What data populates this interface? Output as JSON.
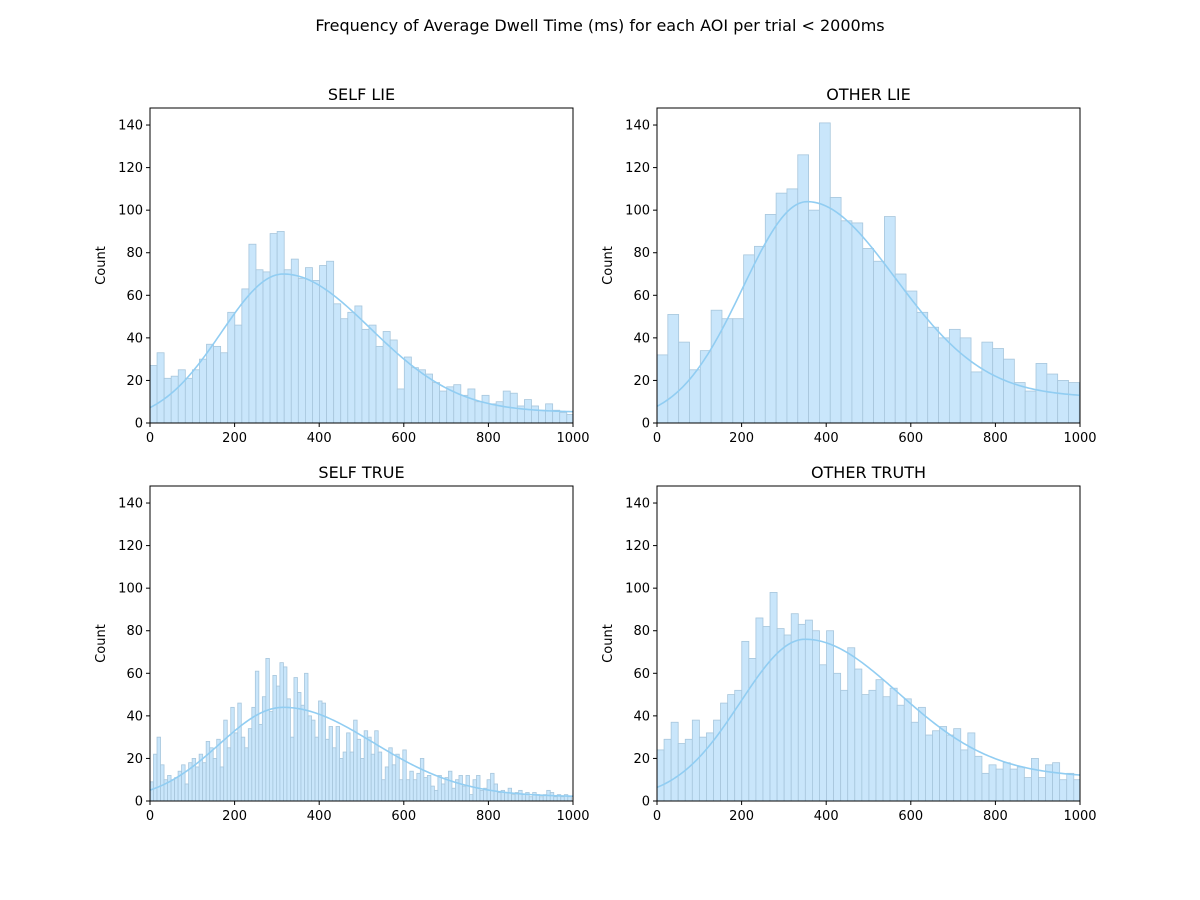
{
  "figure": {
    "title": "Frequency of Average Dwell Time (ms) for each AOI per trial < 2000ms"
  },
  "style": {
    "bar_fill": "#c9e6fb",
    "bar_edge": "#a7c6dc",
    "kde_color": "#91cdf2",
    "axis_color": "#000000"
  },
  "chart_data": [
    {
      "type": "bar",
      "subtype": "histogram-with-kde",
      "title": "SELF LIE",
      "xlabel": "",
      "ylabel": "Count",
      "xlim": [
        0,
        1000
      ],
      "ylim": [
        0,
        148
      ],
      "xticks": [
        0,
        200,
        400,
        600,
        800,
        1000
      ],
      "yticks": [
        0,
        20,
        40,
        60,
        80,
        100,
        120,
        140
      ],
      "bin_width": 16.7,
      "values": [
        27,
        33,
        21,
        22,
        25,
        21,
        25,
        30,
        37,
        36,
        33,
        52,
        46,
        63,
        84,
        72,
        71,
        89,
        90,
        72,
        77,
        68,
        73,
        67,
        74,
        76,
        56,
        49,
        52,
        55,
        44,
        46,
        36,
        43,
        39,
        16,
        31,
        26,
        25,
        23,
        19,
        15,
        17,
        18,
        13,
        16,
        10,
        13,
        9,
        10,
        15,
        14,
        8,
        11,
        8,
        6,
        9,
        6,
        5,
        4,
        6
      ],
      "kde": {
        "peak_x": 315,
        "peak_y": 70,
        "sigma_left": 145,
        "sigma_right": 210,
        "tail_y": 5
      }
    },
    {
      "type": "bar",
      "subtype": "histogram-with-kde",
      "title": "OTHER LIE",
      "xlabel": "",
      "ylabel": "Count",
      "xlim": [
        0,
        1000
      ],
      "ylim": [
        0,
        148
      ],
      "xticks": [
        0,
        200,
        400,
        600,
        800,
        1000
      ],
      "yticks": [
        0,
        20,
        40,
        60,
        80,
        100,
        120,
        140
      ],
      "bin_width": 25.6,
      "values": [
        32,
        51,
        38,
        25,
        34,
        53,
        49,
        49,
        79,
        83,
        98,
        108,
        110,
        126,
        100,
        141,
        106,
        95,
        94,
        82,
        76,
        97,
        70,
        62,
        52,
        45,
        40,
        44,
        40,
        24,
        38,
        35,
        30,
        19,
        15,
        28,
        23,
        20,
        19,
        11,
        13,
        11
      ],
      "kde": {
        "peak_x": 355,
        "peak_y": 104,
        "sigma_left": 150,
        "sigma_right": 215,
        "tail_y": 12
      }
    },
    {
      "type": "bar",
      "subtype": "histogram-with-kde",
      "title": "SELF TRUE",
      "xlabel": "",
      "ylabel": "Count",
      "xlim": [
        0,
        1000
      ],
      "ylim": [
        0,
        148
      ],
      "xticks": [
        0,
        200,
        400,
        600,
        800,
        1000
      ],
      "yticks": [
        0,
        20,
        40,
        60,
        80,
        100,
        120,
        140
      ],
      "bin_width": 8.3,
      "values": [
        9,
        22,
        30,
        17,
        10,
        12,
        10,
        11,
        14,
        17,
        8,
        18,
        20,
        16,
        22,
        18,
        28,
        25,
        20,
        29,
        16,
        38,
        25,
        44,
        32,
        46,
        30,
        25,
        34,
        44,
        61,
        36,
        49,
        67,
        42,
        59,
        54,
        65,
        63,
        48,
        30,
        58,
        51,
        45,
        60,
        40,
        38,
        30,
        47,
        46,
        29,
        35,
        25,
        35,
        20,
        23,
        32,
        23,
        38,
        29,
        20,
        33,
        30,
        22,
        33,
        23,
        10,
        16,
        25,
        17,
        22,
        10,
        24,
        10,
        14,
        10,
        13,
        20,
        11,
        12,
        7,
        5,
        12,
        8,
        11,
        14,
        6,
        10,
        12,
        7,
        12,
        3,
        10,
        12,
        5,
        6,
        10,
        13,
        8,
        4,
        5,
        4,
        6,
        3,
        4,
        5,
        3,
        4,
        2,
        4,
        3,
        2,
        3,
        5,
        4,
        2,
        3,
        2,
        3,
        2
      ],
      "kde": {
        "peak_x": 315,
        "peak_y": 44,
        "sigma_left": 150,
        "sigma_right": 215,
        "tail_y": 2
      }
    },
    {
      "type": "bar",
      "subtype": "histogram-with-kde",
      "title": "OTHER TRUTH",
      "xlabel": "",
      "ylabel": "Count",
      "xlim": [
        0,
        1000
      ],
      "ylim": [
        0,
        148
      ],
      "xticks": [
        0,
        200,
        400,
        600,
        800,
        1000
      ],
      "yticks": [
        0,
        20,
        40,
        60,
        80,
        100,
        120,
        140
      ],
      "bin_width": 16.7,
      "values": [
        24,
        29,
        37,
        27,
        29,
        38,
        30,
        32,
        38,
        46,
        50,
        52,
        75,
        67,
        86,
        82,
        98,
        81,
        78,
        88,
        83,
        85,
        80,
        64,
        80,
        60,
        52,
        72,
        62,
        50,
        52,
        57,
        49,
        53,
        45,
        48,
        37,
        44,
        31,
        33,
        35,
        31,
        34,
        24,
        32,
        21,
        13,
        17,
        15,
        18,
        15,
        16,
        11,
        20,
        11,
        17,
        18,
        10,
        13,
        10
      ],
      "kde": {
        "peak_x": 350,
        "peak_y": 76,
        "sigma_left": 150,
        "sigma_right": 230,
        "tail_y": 11
      }
    }
  ]
}
